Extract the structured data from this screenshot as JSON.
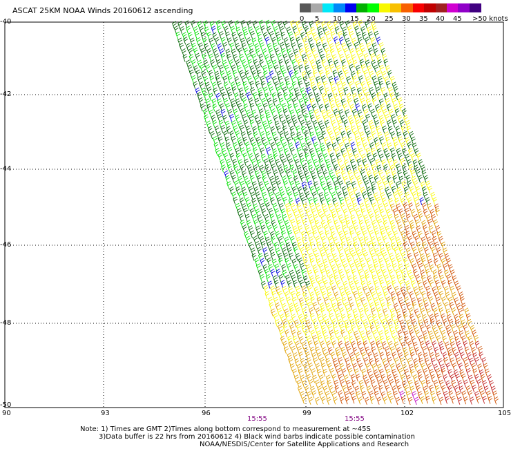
{
  "title": "ASCAT 25KM NOAA Winds 20160612 ascending",
  "colorbar": {
    "colors": [
      "#585858",
      "#a8a8a8",
      "#00e8f8",
      "#0088f8",
      "#0000f0",
      "#00b000",
      "#00ff00",
      "#f8f800",
      "#f8c000",
      "#f86000",
      "#f80000",
      "#c00000",
      "#a02020",
      "#d000d0",
      "#9000c8",
      "#400080"
    ],
    "labels": [
      "0",
      "5",
      "10",
      "15",
      "20",
      "25",
      "30",
      "35",
      "40",
      "45",
      ">50 knots"
    ]
  },
  "map": {
    "lat_labels": [
      "-40",
      "-42",
      "-44",
      "-46",
      "-48",
      "-50"
    ],
    "lon_labels": [
      "90",
      "93",
      "96",
      "99",
      "102",
      "105"
    ],
    "time_labels": [
      "15:55",
      "15:55"
    ],
    "wind_color_bands": [
      {
        "name": "20-25 knots (light green)",
        "color": "#00e000"
      },
      {
        "name": "20-25 knots (dark green)",
        "color": "#006400"
      },
      {
        "name": "10-15 knots",
        "color": "#0000e0"
      },
      {
        "name": "25-30 knots",
        "color": "#f8f800"
      },
      {
        "name": "30-35 knots",
        "color": "#e0a000"
      },
      {
        "name": "35-40 knots",
        "color": "#d05000"
      },
      {
        "name": "40-45 knots",
        "color": "#c02020"
      },
      {
        "name": "45-50 knots",
        "color": "#c000c0"
      }
    ]
  },
  "notes": {
    "line1": "Note: 1) Times are GMT 2)Times along bottom correspond to measurement at ~45S",
    "line2": "3)Data buffer is 22 hrs from 20160612 4) Black wind barbs indicate possible contamination",
    "line3": "NOAA/NESDIS/Center for Satellite Applications and Research"
  }
}
